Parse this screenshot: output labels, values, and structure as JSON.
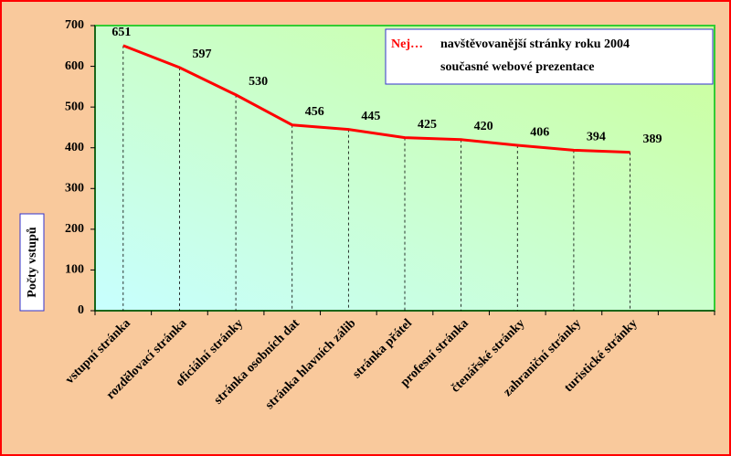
{
  "chart_data": {
    "type": "line",
    "title_highlight": "Nej…",
    "title": "navštěvovanější stránky roku 2004",
    "subtitle": "současné webové prezentace",
    "y_label": "Počty vstupů",
    "categories": [
      "vstupní stránka",
      "rozdělovací stránka",
      "oficiální stránky",
      "stránka osobních dat",
      "stránka hlavních zálib",
      "stránka přátel",
      "profesní stránka",
      "čtenářské stránky",
      "zahraniční stránky",
      "turistické stránky",
      null
    ],
    "series": [
      {
        "color": "#ff0000",
        "values": [
          651,
          597,
          530,
          456,
          445,
          425,
          420,
          406,
          394,
          389,
          null
        ]
      }
    ],
    "ylim": [
      0,
      700
    ],
    "yticks": [
      0,
      100,
      200,
      300,
      400,
      500,
      600,
      700
    ],
    "drop_lines": true
  }
}
